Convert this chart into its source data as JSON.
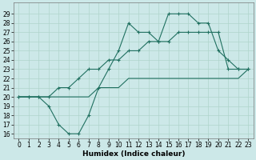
{
  "xlabel": "Humidex (Indice chaleur)",
  "x": [
    0,
    1,
    2,
    3,
    4,
    5,
    6,
    7,
    8,
    9,
    10,
    11,
    12,
    13,
    14,
    15,
    16,
    17,
    18,
    19,
    20,
    21,
    22,
    23
  ],
  "line_jagged": [
    20,
    20,
    20,
    19,
    17,
    16,
    16,
    18,
    21,
    23,
    25,
    28,
    27,
    27,
    26,
    29,
    29,
    29,
    28,
    28,
    25,
    24,
    23,
    23
  ],
  "line_upper_reg": [
    20,
    20,
    20,
    20,
    21,
    21,
    22,
    23,
    23,
    24,
    24,
    25,
    25,
    26,
    26,
    26,
    27,
    27,
    27,
    27,
    27,
    23,
    23,
    23
  ],
  "line_lower_reg": [
    20,
    20,
    20,
    20,
    20,
    20,
    20,
    20,
    21,
    21,
    21,
    22,
    22,
    22,
    22,
    22,
    22,
    22,
    22,
    22,
    22,
    22,
    22,
    23
  ],
  "ylim": [
    15.5,
    30.2
  ],
  "xlim": [
    -0.5,
    23.5
  ],
  "yticks": [
    16,
    17,
    18,
    19,
    20,
    21,
    22,
    23,
    24,
    25,
    26,
    27,
    28,
    29
  ],
  "xticks": [
    0,
    1,
    2,
    3,
    4,
    5,
    6,
    7,
    8,
    9,
    10,
    11,
    12,
    13,
    14,
    15,
    16,
    17,
    18,
    19,
    20,
    21,
    22,
    23
  ],
  "line_color": "#207060",
  "bg_color": "#cce8e8",
  "grid_color": "#b0d4cc",
  "tick_fontsize": 5.5,
  "xlabel_fontsize": 6.5,
  "lw": 0.8,
  "marker_size": 2.5
}
